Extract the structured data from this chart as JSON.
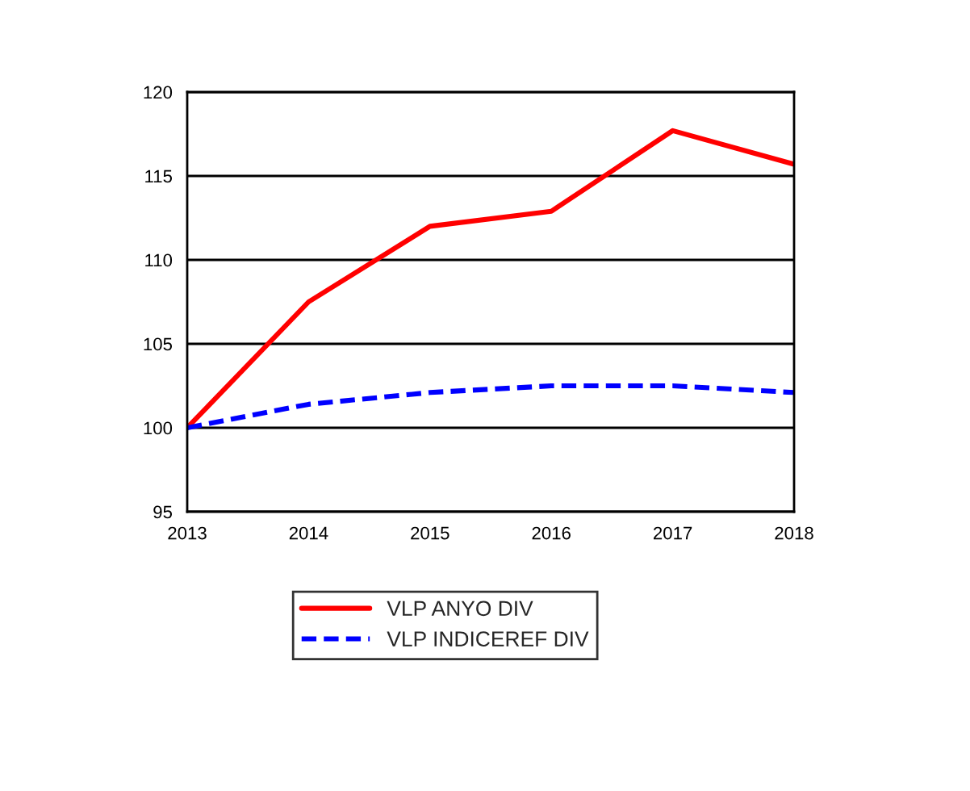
{
  "chart_data": {
    "type": "line",
    "x": [
      2013,
      2014,
      2015,
      2016,
      2017,
      2018
    ],
    "series": [
      {
        "name": "VLP ANYO DIV",
        "color": "#ff0000",
        "line_style": "solid",
        "values": [
          100,
          107.5,
          112.0,
          112.9,
          117.7,
          115.7
        ]
      },
      {
        "name": "VLP INDICEREF DIV",
        "color": "#0000ff",
        "line_style": "dashed",
        "values": [
          100,
          101.4,
          102.1,
          102.5,
          102.5,
          102.1
        ]
      }
    ],
    "xlim": [
      2013,
      2018
    ],
    "xticks": [
      2013,
      2014,
      2015,
      2016,
      2017,
      2018
    ],
    "ylim": [
      95,
      120
    ],
    "yticks": [
      95,
      100,
      105,
      110,
      115,
      120
    ],
    "grid": "y",
    "legend": "bottom",
    "marker": "none"
  }
}
